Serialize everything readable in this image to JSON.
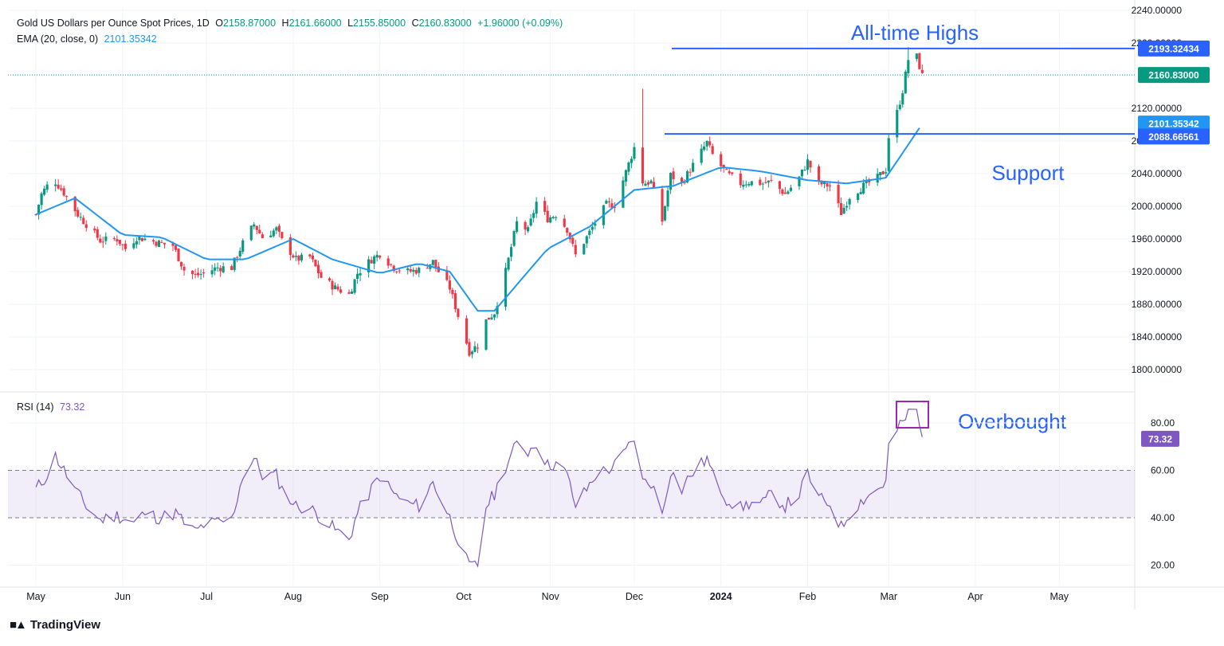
{
  "header": {
    "symbol_title": "Gold US Dollars per Ounce Spot Prices, 1D",
    "open_label": "O",
    "open_value": "2158.87000",
    "high_label": "H",
    "high_value": "2161.66000",
    "low_label": "L",
    "low_value": "2155.85000",
    "close_label": "C",
    "close_value": "2160.83000",
    "change": "+1.96000 (+0.09%)",
    "ema_label": "EMA (20, close, 0)",
    "ema_value": "2101.35342",
    "rsi_label": "RSI (14)",
    "rsi_value": "73.32"
  },
  "annotations": {
    "top": "All-time Highs",
    "mid": "Support",
    "rsi": "Overbought"
  },
  "price_tags": {
    "ath": "2193.32434",
    "last": "2160.83000",
    "ema": "2101.35342",
    "support": "2088.66561"
  },
  "branding": {
    "name": "TradingView"
  },
  "colors": {
    "up": "#089981",
    "down": "#f23645",
    "ema": "#2196f3",
    "rsi": "#7e57c2",
    "hline": "#2962ff",
    "annotation": "#2962ff",
    "rsi_band": "#7e57c2"
  },
  "chart_data": [
    {
      "type": "candlestick",
      "title": "Gold US Dollars per Ounce Spot Prices, 1D",
      "y_ticks": [
        "2240.00000",
        "2200.00000",
        "2120.00000",
        "2080.00000",
        "2040.00000",
        "2000.00000",
        "1960.00000",
        "1920.00000",
        "1880.00000",
        "1840.00000",
        "1800.00000"
      ],
      "ylim": [
        1780,
        2245
      ],
      "x_ticks": [
        "May",
        "Jun",
        "Jul",
        "Aug",
        "Sep",
        "Oct",
        "Nov",
        "Dec",
        "2024",
        "Feb",
        "Mar",
        "Apr",
        "May"
      ],
      "horizontal_lines": [
        2193.32,
        2088.67
      ],
      "close_path": [
        [
          "2023-05-01",
          1990
        ],
        [
          "2023-05-03",
          2015
        ],
        [
          "2023-05-05",
          2025
        ],
        [
          "2023-05-08",
          2030
        ],
        [
          "2023-05-12",
          2012
        ],
        [
          "2023-05-16",
          1990
        ],
        [
          "2023-05-19",
          1978
        ],
        [
          "2023-05-24",
          1958
        ],
        [
          "2023-05-30",
          1960
        ],
        [
          "2023-06-02",
          1948
        ],
        [
          "2023-06-06",
          1962
        ],
        [
          "2023-06-09",
          1960
        ],
        [
          "2023-06-14",
          1955
        ],
        [
          "2023-06-19",
          1952
        ],
        [
          "2023-06-23",
          1922
        ],
        [
          "2023-06-27",
          1915
        ],
        [
          "2023-06-30",
          1918
        ],
        [
          "2023-07-05",
          1925
        ],
        [
          "2023-07-10",
          1925
        ],
        [
          "2023-07-14",
          1955
        ],
        [
          "2023-07-18",
          1978
        ],
        [
          "2023-07-21",
          1962
        ],
        [
          "2023-07-26",
          1972
        ],
        [
          "2023-07-28",
          1958
        ],
        [
          "2023-08-02",
          1935
        ],
        [
          "2023-08-07",
          1938
        ],
        [
          "2023-08-11",
          1913
        ],
        [
          "2023-08-16",
          1900
        ],
        [
          "2023-08-21",
          1892
        ],
        [
          "2023-08-24",
          1918
        ],
        [
          "2023-08-29",
          1935
        ],
        [
          "2023-09-01",
          1942
        ],
        [
          "2023-09-06",
          1925
        ],
        [
          "2023-09-11",
          1920
        ],
        [
          "2023-09-15",
          1922
        ],
        [
          "2023-09-20",
          1932
        ],
        [
          "2023-09-22",
          1920
        ],
        [
          "2023-09-26",
          1900
        ],
        [
          "2023-09-29",
          1866
        ],
        [
          "2023-10-03",
          1822
        ],
        [
          "2023-10-06",
          1830
        ],
        [
          "2023-10-09",
          1860
        ],
        [
          "2023-10-12",
          1870
        ],
        [
          "2023-10-16",
          1920
        ],
        [
          "2023-10-20",
          1980
        ],
        [
          "2023-10-24",
          1970
        ],
        [
          "2023-10-27",
          2005
        ],
        [
          "2023-10-31",
          1985
        ],
        [
          "2023-11-03",
          1990
        ],
        [
          "2023-11-07",
          1972
        ],
        [
          "2023-11-10",
          1940
        ],
        [
          "2023-11-14",
          1962
        ],
        [
          "2023-11-17",
          1980
        ],
        [
          "2023-11-21",
          2002
        ],
        [
          "2023-11-24",
          2002
        ],
        [
          "2023-11-28",
          2042
        ],
        [
          "2023-12-01",
          2072
        ],
        [
          "2023-12-04",
          2028
        ],
        [
          "2023-12-07",
          2030
        ],
        [
          "2023-12-11",
          1982
        ],
        [
          "2023-12-14",
          2038
        ],
        [
          "2023-12-18",
          2028
        ],
        [
          "2023-12-21",
          2045
        ],
        [
          "2023-12-27",
          2078
        ],
        [
          "2023-12-29",
          2063
        ],
        [
          "2024-01-03",
          2040
        ],
        [
          "2024-01-08",
          2028
        ],
        [
          "2024-01-11",
          2030
        ],
        [
          "2024-01-16",
          2028
        ],
        [
          "2024-01-19",
          2030
        ],
        [
          "2024-01-24",
          2015
        ],
        [
          "2024-01-29",
          2035
        ],
        [
          "2024-02-01",
          2055
        ],
        [
          "2024-02-05",
          2028
        ],
        [
          "2024-02-09",
          2025
        ],
        [
          "2024-02-13",
          1992
        ],
        [
          "2024-02-16",
          2012
        ],
        [
          "2024-02-21",
          2025
        ],
        [
          "2024-02-26",
          2035
        ],
        [
          "2024-02-29",
          2045
        ],
        [
          "2024-03-01",
          2085
        ],
        [
          "2024-03-04",
          2115
        ],
        [
          "2024-03-06",
          2142
        ],
        [
          "2024-03-08",
          2180
        ],
        [
          "2024-03-11",
          2183
        ],
        [
          "2024-03-13",
          2160
        ]
      ],
      "ema20_path": [
        [
          "2023-05-01",
          1990
        ],
        [
          "2023-05-15",
          2010
        ],
        [
          "2023-06-01",
          1965
        ],
        [
          "2023-06-15",
          1962
        ],
        [
          "2023-07-01",
          1935
        ],
        [
          "2023-07-15",
          1935
        ],
        [
          "2023-08-01",
          1960
        ],
        [
          "2023-08-15",
          1935
        ],
        [
          "2023-09-01",
          1918
        ],
        [
          "2023-09-15",
          1930
        ],
        [
          "2023-09-26",
          1920
        ],
        [
          "2023-10-06",
          1872
        ],
        [
          "2023-10-12",
          1872
        ],
        [
          "2023-10-31",
          1948
        ],
        [
          "2023-11-15",
          1975
        ],
        [
          "2023-12-01",
          2020
        ],
        [
          "2023-12-15",
          2025
        ],
        [
          "2024-01-01",
          2048
        ],
        [
          "2024-01-15",
          2043
        ],
        [
          "2024-02-01",
          2032
        ],
        [
          "2024-02-15",
          2028
        ],
        [
          "2024-02-29",
          2035
        ],
        [
          "2024-03-13",
          2101
        ]
      ]
    },
    {
      "type": "line",
      "title": "RSI (14)",
      "y_ticks": [
        "80.00",
        "60.00",
        "40.00",
        "20.00"
      ],
      "ylim": [
        13,
        93
      ],
      "band": [
        40,
        60
      ],
      "series": [
        {
          "name": "RSI (14)",
          "points": [
            [
              "2023-05-01",
              52
            ],
            [
              "2023-05-05",
              58
            ],
            [
              "2023-05-08",
              66
            ],
            [
              "2023-05-12",
              58
            ],
            [
              "2023-05-16",
              50
            ],
            [
              "2023-05-19",
              45
            ],
            [
              "2023-05-24",
              39
            ],
            [
              "2023-05-30",
              41
            ],
            [
              "2023-06-05",
              38
            ],
            [
              "2023-06-09",
              42
            ],
            [
              "2023-06-14",
              40
            ],
            [
              "2023-06-20",
              42
            ],
            [
              "2023-06-23",
              38
            ],
            [
              "2023-06-27",
              34
            ],
            [
              "2023-06-30",
              37
            ],
            [
              "2023-07-05",
              38
            ],
            [
              "2023-07-10",
              39
            ],
            [
              "2023-07-14",
              58
            ],
            [
              "2023-07-18",
              65
            ],
            [
              "2023-07-21",
              58
            ],
            [
              "2023-07-26",
              58
            ],
            [
              "2023-07-28",
              52
            ],
            [
              "2023-08-02",
              45
            ],
            [
              "2023-08-07",
              44
            ],
            [
              "2023-08-11",
              40
            ],
            [
              "2023-08-16",
              35
            ],
            [
              "2023-08-21",
              31
            ],
            [
              "2023-08-24",
              42
            ],
            [
              "2023-08-29",
              52
            ],
            [
              "2023-09-01",
              58
            ],
            [
              "2023-09-06",
              50
            ],
            [
              "2023-09-11",
              46
            ],
            [
              "2023-09-15",
              45
            ],
            [
              "2023-09-20",
              55
            ],
            [
              "2023-09-22",
              50
            ],
            [
              "2023-09-26",
              40
            ],
            [
              "2023-09-29",
              31
            ],
            [
              "2023-10-03",
              19
            ],
            [
              "2023-10-06",
              20
            ],
            [
              "2023-10-09",
              45
            ],
            [
              "2023-10-12",
              50
            ],
            [
              "2023-10-16",
              62
            ],
            [
              "2023-10-20",
              71
            ],
            [
              "2023-10-24",
              68
            ],
            [
              "2023-10-27",
              72
            ],
            [
              "2023-10-31",
              62
            ],
            [
              "2023-11-03",
              63
            ],
            [
              "2023-11-07",
              58
            ],
            [
              "2023-11-10",
              45
            ],
            [
              "2023-11-14",
              52
            ],
            [
              "2023-11-17",
              58
            ],
            [
              "2023-11-21",
              60
            ],
            [
              "2023-11-24",
              62
            ],
            [
              "2023-11-28",
              68
            ],
            [
              "2023-12-01",
              74
            ],
            [
              "2023-12-04",
              55
            ],
            [
              "2023-12-07",
              55
            ],
            [
              "2023-12-11",
              42
            ],
            [
              "2023-12-14",
              60
            ],
            [
              "2023-12-18",
              52
            ],
            [
              "2023-12-21",
              58
            ],
            [
              "2023-12-27",
              65
            ],
            [
              "2023-12-29",
              58
            ],
            [
              "2024-01-03",
              48
            ],
            [
              "2024-01-08",
              44
            ],
            [
              "2024-01-11",
              46
            ],
            [
              "2024-01-16",
              46
            ],
            [
              "2024-01-19",
              50
            ],
            [
              "2024-01-24",
              45
            ],
            [
              "2024-01-29",
              50
            ],
            [
              "2024-02-01",
              59
            ],
            [
              "2024-02-05",
              48
            ],
            [
              "2024-02-09",
              46
            ],
            [
              "2024-02-13",
              36
            ],
            [
              "2024-02-16",
              42
            ],
            [
              "2024-02-21",
              48
            ],
            [
              "2024-02-26",
              52
            ],
            [
              "2024-02-29",
              55
            ],
            [
              "2024-03-01",
              70
            ],
            [
              "2024-03-04",
              77
            ],
            [
              "2024-03-06",
              80
            ],
            [
              "2024-03-08",
              84
            ],
            [
              "2024-03-11",
              85
            ],
            [
              "2024-03-13",
              73
            ]
          ]
        }
      ]
    }
  ]
}
